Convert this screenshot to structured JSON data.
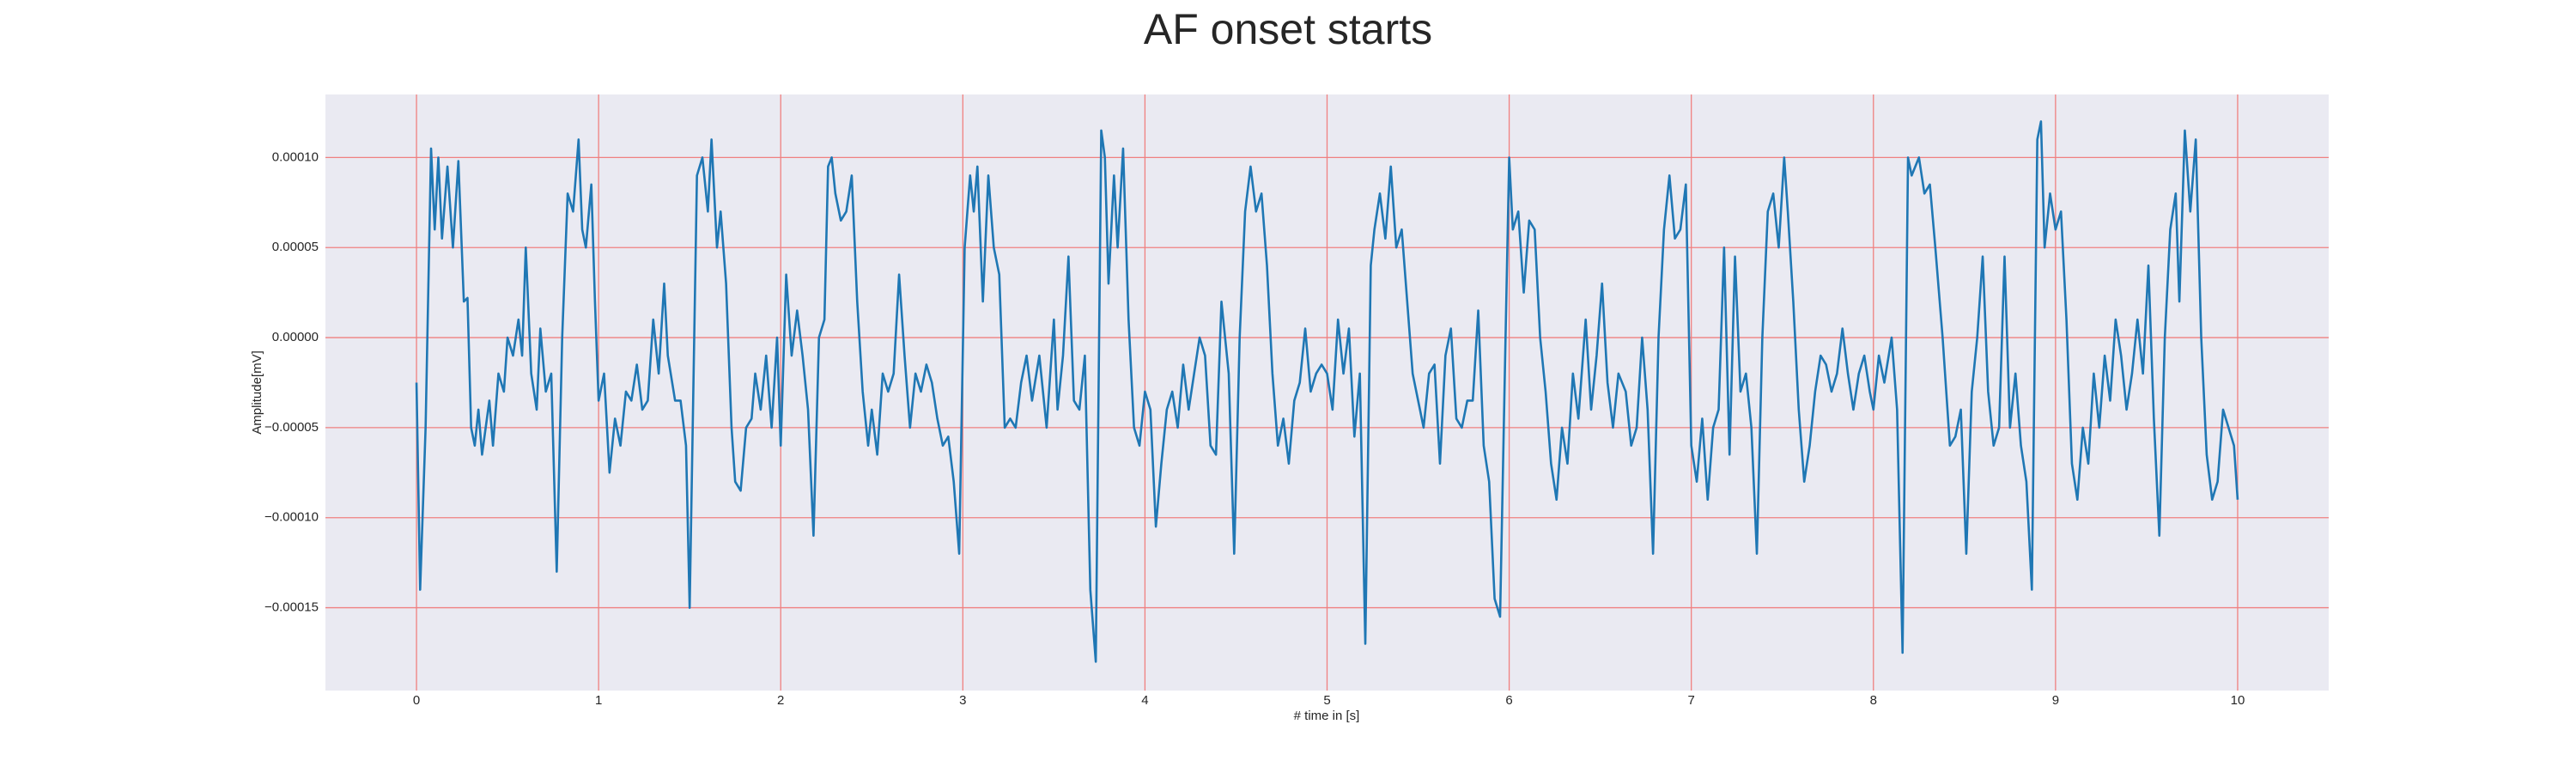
{
  "chart_data": {
    "type": "line",
    "title": "AF onset starts",
    "xlabel": "# time in [s]",
    "ylabel": "Amplitude[mV]",
    "grid": true,
    "background": "#eaeaf2",
    "grid_color": "#f08080",
    "xlim": [
      -0.5,
      10.5
    ],
    "xticks": [
      0,
      1,
      2,
      3,
      4,
      5,
      6,
      7,
      8,
      9,
      10
    ],
    "ylim": [
      -0.000196,
      0.000135
    ],
    "yticks": [
      {
        "value": -0.00015,
        "label": "−0.00015"
      },
      {
        "value": -0.0001,
        "label": "−0.00010"
      },
      {
        "value": -5e-05,
        "label": "−0.00005"
      },
      {
        "value": 0,
        "label": "0.00000"
      },
      {
        "value": 5e-05,
        "label": "0.00005"
      },
      {
        "value": 0.0001,
        "label": "0.00010"
      }
    ],
    "x": [
      0,
      0.02,
      0.05,
      0.08,
      0.1,
      0.12,
      0.14,
      0.17,
      0.2,
      0.23,
      0.26,
      0.28,
      0.3,
      0.32,
      0.34,
      0.36,
      0.4,
      0.42,
      0.45,
      0.48,
      0.5,
      0.53,
      0.56,
      0.58,
      0.6,
      0.63,
      0.66,
      0.68,
      0.71,
      0.74,
      0.77,
      0.8,
      0.83,
      0.86,
      0.89,
      0.91,
      0.93,
      0.96,
      0.98,
      1,
      1.03,
      1.06,
      1.09,
      1.12,
      1.15,
      1.18,
      1.21,
      1.24,
      1.27,
      1.3,
      1.33,
      1.36,
      1.38,
      1.42,
      1.45,
      1.48,
      1.5,
      1.54,
      1.57,
      1.6,
      1.62,
      1.65,
      1.67,
      1.7,
      1.73,
      1.75,
      1.78,
      1.81,
      1.84,
      1.86,
      1.89,
      1.92,
      1.95,
      1.98,
      2,
      2.03,
      2.06,
      2.09,
      2.12,
      2.15,
      2.18,
      2.21,
      2.24,
      2.26,
      2.28,
      2.3,
      2.33,
      2.36,
      2.39,
      2.42,
      2.45,
      2.48,
      2.5,
      2.53,
      2.56,
      2.59,
      2.62,
      2.65,
      2.68,
      2.71,
      2.74,
      2.77,
      2.8,
      2.83,
      2.86,
      2.89,
      2.92,
      2.95,
      2.98,
      3.01,
      3.04,
      3.06,
      3.08,
      3.11,
      3.14,
      3.17,
      3.2,
      3.23,
      3.26,
      3.29,
      3.32,
      3.35,
      3.38,
      3.42,
      3.46,
      3.5,
      3.52,
      3.55,
      3.58,
      3.61,
      3.64,
      3.67,
      3.7,
      3.73,
      3.76,
      3.78,
      3.8,
      3.83,
      3.85,
      3.88,
      3.91,
      3.94,
      3.97,
      4,
      4.03,
      4.06,
      4.09,
      4.12,
      4.15,
      4.18,
      4.21,
      4.24,
      4.27,
      4.3,
      4.33,
      4.36,
      4.39,
      4.42,
      4.46,
      4.49,
      4.52,
      4.55,
      4.58,
      4.61,
      4.64,
      4.67,
      4.7,
      4.73,
      4.76,
      4.79,
      4.82,
      4.85,
      4.88,
      4.91,
      4.94,
      4.97,
      5,
      5.03,
      5.06,
      5.09,
      5.12,
      5.15,
      5.18,
      5.21,
      5.24,
      5.26,
      5.29,
      5.32,
      5.35,
      5.38,
      5.41,
      5.44,
      5.47,
      5.5,
      5.53,
      5.56,
      5.59,
      5.62,
      5.65,
      5.68,
      5.71,
      5.74,
      5.77,
      5.8,
      5.83,
      5.86,
      5.89,
      5.92,
      5.95,
      5.98,
      6,
      6.02,
      6.05,
      6.08,
      6.11,
      6.14,
      6.17,
      6.2,
      6.23,
      6.26,
      6.29,
      6.32,
      6.35,
      6.38,
      6.42,
      6.45,
      6.48,
      6.51,
      6.54,
      6.57,
      6.6,
      6.64,
      6.67,
      6.7,
      6.73,
      6.76,
      6.79,
      6.82,
      6.85,
      6.88,
      6.91,
      6.94,
      6.97,
      7,
      7.03,
      7.06,
      7.09,
      7.12,
      7.15,
      7.18,
      7.21,
      7.24,
      7.27,
      7.3,
      7.33,
      7.36,
      7.39,
      7.42,
      7.45,
      7.48,
      7.51,
      7.53,
      7.56,
      7.59,
      7.62,
      7.65,
      7.68,
      7.71,
      7.74,
      7.77,
      7.8,
      7.83,
      7.86,
      7.89,
      7.92,
      7.95,
      7.98,
      8,
      8.03,
      8.06,
      8.1,
      8.13,
      8.16,
      8.19,
      8.21,
      8.23,
      8.25,
      8.28,
      8.31,
      8.34,
      8.38,
      8.42,
      8.45,
      8.48,
      8.51,
      8.54,
      8.57,
      8.6,
      8.63,
      8.66,
      8.69,
      8.72,
      8.75,
      8.78,
      8.81,
      8.84,
      8.87,
      8.9,
      8.92,
      8.94,
      8.97,
      9,
      9.03,
      9.06,
      9.09,
      9.12,
      9.15,
      9.18,
      9.21,
      9.24,
      9.27,
      9.3,
      9.33,
      9.36,
      9.39,
      9.42,
      9.45,
      9.48,
      9.51,
      9.54,
      9.57,
      9.6,
      9.63,
      9.66,
      9.68,
      9.71,
      9.74,
      9.77,
      9.8,
      9.83,
      9.86,
      9.89,
      9.92,
      9.95,
      9.98,
      10
    ],
    "series": [
      {
        "color": "#1f77b4",
        "values": [
          -2.5e-05,
          -0.00014,
          -5e-05,
          0.000105,
          6e-05,
          0.0001,
          5.5e-05,
          9.5e-05,
          5e-05,
          9.8e-05,
          2e-05,
          2.2e-05,
          -5e-05,
          -6e-05,
          -4e-05,
          -6.5e-05,
          -3.5e-05,
          -6e-05,
          -2e-05,
          -3e-05,
          0,
          -1e-05,
          1e-05,
          -1e-05,
          5e-05,
          -2e-05,
          -4e-05,
          5e-06,
          -3e-05,
          -2e-05,
          -0.00013,
          0,
          8e-05,
          7e-05,
          0.00011,
          6e-05,
          5e-05,
          8.5e-05,
          2e-05,
          -3.5e-05,
          -2e-05,
          -7.5e-05,
          -4.5e-05,
          -6e-05,
          -3e-05,
          -3.5e-05,
          -1.5e-05,
          -4e-05,
          -3.5e-05,
          1e-05,
          -2e-05,
          3e-05,
          -1e-05,
          -3.5e-05,
          -3.5e-05,
          -6e-05,
          -0.00015,
          9e-05,
          0.0001,
          7e-05,
          0.00011,
          5e-05,
          7e-05,
          3e-05,
          -5e-05,
          -8e-05,
          -8.5e-05,
          -5e-05,
          -4.5e-05,
          -2e-05,
          -4e-05,
          -1e-05,
          -5e-05,
          0,
          -6e-05,
          3.5e-05,
          -1e-05,
          1.5e-05,
          -1e-05,
          -4e-05,
          -0.00011,
          0,
          1e-05,
          9.5e-05,
          0.0001,
          8e-05,
          6.5e-05,
          7e-05,
          9e-05,
          2e-05,
          -3e-05,
          -6e-05,
          -4e-05,
          -6.5e-05,
          -2e-05,
          -3e-05,
          -2e-05,
          3.5e-05,
          -1e-05,
          -5e-05,
          -2e-05,
          -3e-05,
          -1.5e-05,
          -2.5e-05,
          -4.5e-05,
          -6e-05,
          -5.5e-05,
          -8e-05,
          -0.00012,
          5e-05,
          9e-05,
          7e-05,
          9.5e-05,
          2e-05,
          9e-05,
          5e-05,
          3.5e-05,
          -5e-05,
          -4.5e-05,
          -5e-05,
          -2.5e-05,
          -1e-05,
          -3.5e-05,
          -1e-05,
          -5e-05,
          1e-05,
          -4e-05,
          -1e-05,
          4.5e-05,
          -3.5e-05,
          -4e-05,
          -1e-05,
          -0.00014,
          -0.00018,
          0.000115,
          0.0001,
          3e-05,
          9e-05,
          5e-05,
          0.000105,
          1e-05,
          -5e-05,
          -6e-05,
          -3e-05,
          -4e-05,
          -0.000105,
          -7e-05,
          -4e-05,
          -3e-05,
          -5e-05,
          -1.5e-05,
          -4e-05,
          -2e-05,
          0,
          -1e-05,
          -6e-05,
          -6.5e-05,
          2e-05,
          -2e-05,
          -0.00012,
          0,
          7e-05,
          9.5e-05,
          7e-05,
          8e-05,
          4e-05,
          -2e-05,
          -6e-05,
          -4.5e-05,
          -7e-05,
          -3.5e-05,
          -2.5e-05,
          5e-06,
          -3e-05,
          -2e-05,
          -1.5e-05,
          -2e-05,
          -4e-05,
          1e-05,
          -2e-05,
          5e-06,
          -5.5e-05,
          -2e-05,
          -0.00017,
          4e-05,
          6e-05,
          8e-05,
          5.5e-05,
          9.5e-05,
          5e-05,
          6e-05,
          2e-05,
          -2e-05,
          -3.5e-05,
          -5e-05,
          -2e-05,
          -1.5e-05,
          -7e-05,
          -1e-05,
          5e-06,
          -4.5e-05,
          -5e-05,
          -3.5e-05,
          -3.5e-05,
          1.5e-05,
          -6e-05,
          -8e-05,
          -0.000145,
          -0.000155,
          0,
          0.0001,
          6e-05,
          7e-05,
          2.5e-05,
          6.5e-05,
          6e-05,
          0,
          -3e-05,
          -7e-05,
          -9e-05,
          -5e-05,
          -7e-05,
          -2e-05,
          -4.5e-05,
          1e-05,
          -4e-05,
          -1e-05,
          3e-05,
          -2.5e-05,
          -5e-05,
          -2e-05,
          -3e-05,
          -6e-05,
          -5e-05,
          0,
          -4e-05,
          -0.00012,
          0,
          6e-05,
          9e-05,
          5.5e-05,
          6e-05,
          8.5e-05,
          -6e-05,
          -8e-05,
          -4.5e-05,
          -9e-05,
          -5e-05,
          -4e-05,
          5e-05,
          -6.5e-05,
          4.5e-05,
          -3e-05,
          -2e-05,
          -5e-05,
          -0.00012,
          0,
          7e-05,
          8e-05,
          5e-05,
          0.0001,
          7e-05,
          2e-05,
          -4e-05,
          -8e-05,
          -6e-05,
          -3e-05,
          -1e-05,
          -1.5e-05,
          -3e-05,
          -2e-05,
          5e-06,
          -2e-05,
          -4e-05,
          -2e-05,
          -1e-05,
          -3e-05,
          -4e-05,
          -1e-05,
          -2.5e-05,
          0,
          -4e-05,
          -0.000175,
          0.0001,
          9e-05,
          9.5e-05,
          0.0001,
          8e-05,
          8.5e-05,
          5e-05,
          0,
          -6e-05,
          -5.5e-05,
          -4e-05,
          -0.00012,
          -3e-05,
          0,
          4.5e-05,
          -3e-05,
          -6e-05,
          -5e-05,
          4.5e-05,
          -5e-05,
          -2e-05,
          -6e-05,
          -8e-05,
          -0.00014,
          0.00011,
          0.00012,
          5e-05,
          8e-05,
          6e-05,
          7e-05,
          1e-05,
          -7e-05,
          -9e-05,
          -5e-05,
          -7e-05,
          -2e-05,
          -5e-05,
          -1e-05,
          -3.5e-05,
          1e-05,
          -1e-05,
          -4e-05,
          -2e-05,
          1e-05,
          -2e-05,
          4e-05,
          -4.5e-05,
          -0.00011,
          0,
          6e-05,
          8e-05,
          2e-05,
          0.000115,
          7e-05,
          0.00011,
          0,
          -6.5e-05,
          -9e-05,
          -8e-05,
          -4e-05,
          -5e-05,
          -6e-05,
          -9e-05
        ]
      }
    ]
  }
}
